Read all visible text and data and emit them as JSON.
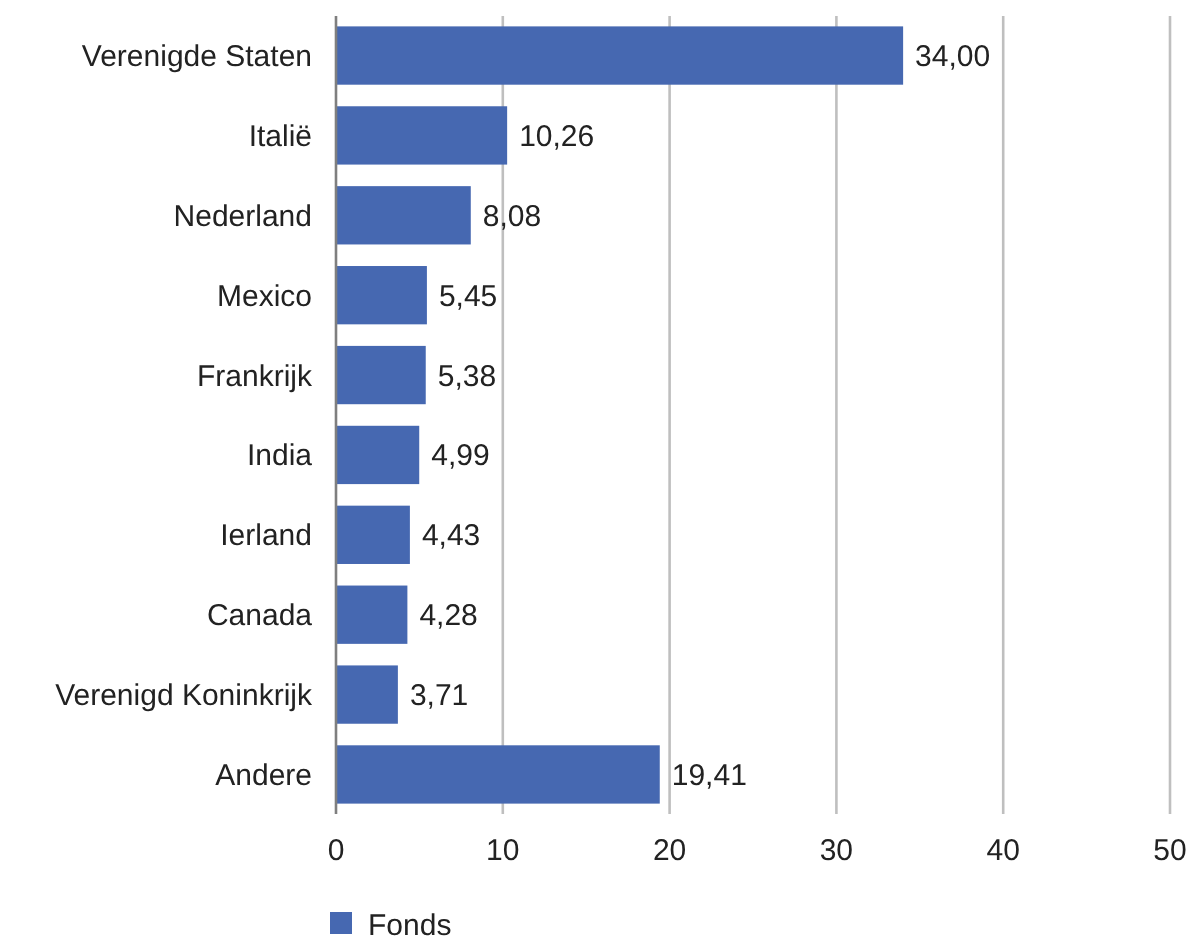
{
  "chart_data": {
    "type": "bar",
    "orientation": "horizontal",
    "categories": [
      "Verenigde Staten",
      "Italië",
      "Nederland",
      "Mexico",
      "Frankrijk",
      "India",
      "Ierland",
      "Canada",
      "Verenigd Koninkrijk",
      "Andere"
    ],
    "series": [
      {
        "name": "Fonds",
        "color": "#4668b1",
        "values": [
          34.0,
          10.26,
          8.08,
          5.45,
          5.38,
          4.99,
          4.43,
          4.28,
          3.71,
          19.41
        ],
        "value_labels": [
          "34,00",
          "10,26",
          "8,08",
          "5,45",
          "5,38",
          "4,99",
          "4,43",
          "4,28",
          "3,71",
          "19,41"
        ]
      }
    ],
    "xlim": [
      0,
      50
    ],
    "xticks": [
      0,
      10,
      20,
      30,
      40,
      50
    ],
    "grid": "x",
    "legend": "bottom"
  }
}
